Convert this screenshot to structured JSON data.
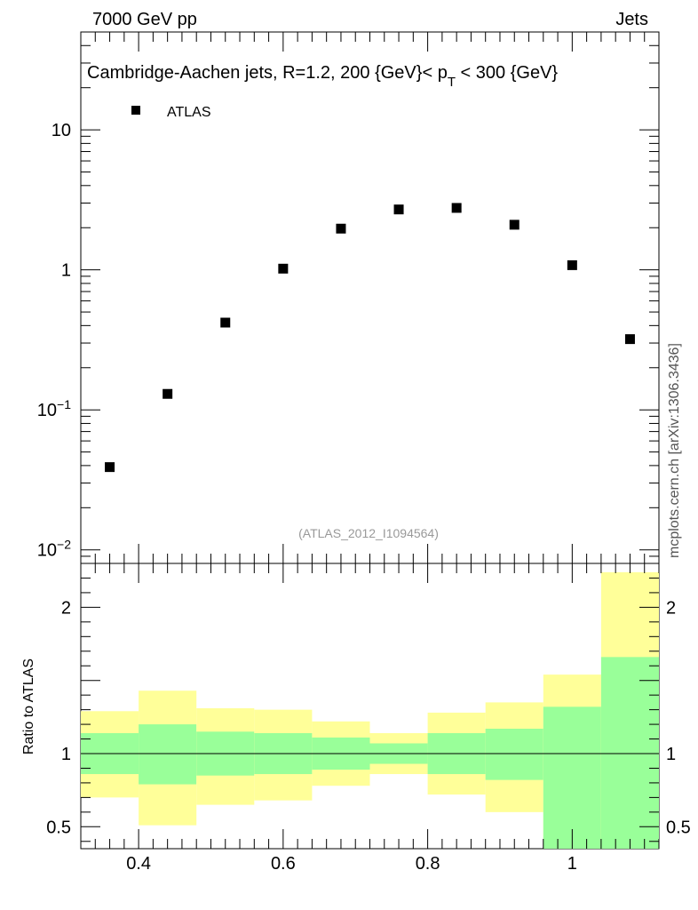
{
  "header": {
    "left": "7000 GeV pp",
    "right": "Jets"
  },
  "side_label": "mcplots.cern.ch [arXiv:1306.3436]",
  "chart_data": {
    "type": "scatter",
    "title_main": "Cambridge-Aachen jets, R=1.2,  200 {GeV}< p",
    "title_sub": "T",
    "title_tail": " < 300 {GeV}",
    "legend": [
      {
        "name": "ATLAS",
        "marker": "square",
        "color": "#000000"
      }
    ],
    "watermark": "(ATLAS_2012_I1094564)",
    "x": [
      0.36,
      0.44,
      0.52,
      0.6,
      0.68,
      0.76,
      0.84,
      0.92,
      1.0,
      1.08
    ],
    "y": [
      0.039,
      0.13,
      0.42,
      1.02,
      1.97,
      2.7,
      2.77,
      2.1,
      1.08,
      0.32
    ],
    "xlim": [
      0.32,
      1.12
    ],
    "ylim_log": [
      0.008,
      50
    ],
    "yscale": "log",
    "y_ticks": [
      {
        "value": 10,
        "base": "10",
        "exp": ""
      },
      {
        "value": 1,
        "base": "1",
        "exp": ""
      },
      {
        "value": 0.1,
        "base": "10",
        "exp": "−1"
      },
      {
        "value": 0.01,
        "base": "10",
        "exp": "−2"
      }
    ],
    "x_ticks": [
      {
        "value": 0.4,
        "label": "0.4"
      },
      {
        "value": 0.6,
        "label": "0.6"
      },
      {
        "value": 0.8,
        "label": "0.8"
      },
      {
        "value": 1.0,
        "label": "1"
      }
    ],
    "ratio": {
      "ylabel": "Ratio to ATLAS",
      "ylim": [
        0.35,
        2.3
      ],
      "y_ticks": [
        {
          "value": 2,
          "label": "2"
        },
        {
          "value": 1,
          "label": "1"
        },
        {
          "value": 0.5,
          "label": "0.5"
        }
      ],
      "reference_line": 1,
      "bins": [
        {
          "x0": 0.32,
          "x1": 0.4,
          "green": [
            0.86,
            1.14
          ],
          "yellow": [
            0.7,
            1.29
          ]
        },
        {
          "x0": 0.4,
          "x1": 0.48,
          "green": [
            0.79,
            1.2
          ],
          "yellow": [
            0.51,
            1.43
          ]
        },
        {
          "x0": 0.48,
          "x1": 0.56,
          "green": [
            0.85,
            1.15
          ],
          "yellow": [
            0.65,
            1.31
          ]
        },
        {
          "x0": 0.56,
          "x1": 0.64,
          "green": [
            0.86,
            1.14
          ],
          "yellow": [
            0.68,
            1.3
          ]
        },
        {
          "x0": 0.64,
          "x1": 0.72,
          "green": [
            0.89,
            1.11
          ],
          "yellow": [
            0.78,
            1.22
          ]
        },
        {
          "x0": 0.72,
          "x1": 0.8,
          "green": [
            0.93,
            1.07
          ],
          "yellow": [
            0.86,
            1.14
          ]
        },
        {
          "x0": 0.8,
          "x1": 0.88,
          "green": [
            0.86,
            1.14
          ],
          "yellow": [
            0.72,
            1.28
          ]
        },
        {
          "x0": 0.88,
          "x1": 0.96,
          "green": [
            0.82,
            1.17
          ],
          "yellow": [
            0.6,
            1.35
          ]
        },
        {
          "x0": 0.96,
          "x1": 1.04,
          "green": [
            0.0,
            1.32
          ],
          "yellow": [
            0.0,
            1.54
          ]
        },
        {
          "x0": 1.04,
          "x1": 1.12,
          "green": [
            0.0,
            1.66
          ],
          "yellow": [
            0.0,
            2.24
          ]
        }
      ],
      "green_color": "#99ff99",
      "yellow_color": "#ffff99"
    }
  }
}
